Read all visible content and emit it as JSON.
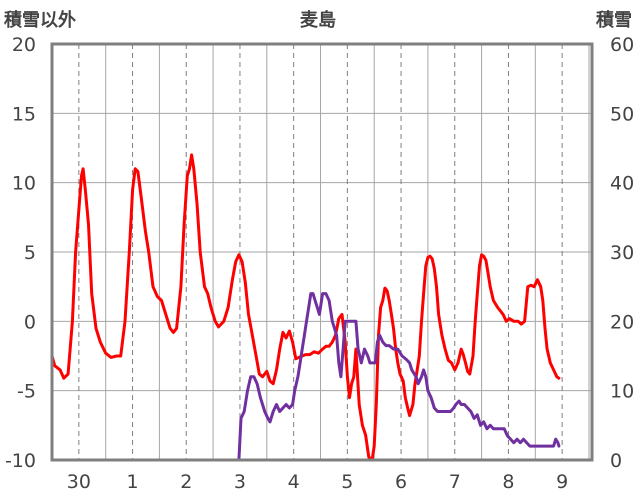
{
  "chart_data": {
    "type": "line",
    "title": "麦島",
    "ylabel_left": "積雪以外",
    "ylabel_right": "積雪",
    "ylim_left": [
      -10,
      20
    ],
    "ylim_right": [
      0,
      60
    ],
    "left_ticks": [
      "20",
      "15",
      "10",
      "5",
      "0",
      "-5",
      "-10"
    ],
    "right_ticks": [
      "60",
      "50",
      "40",
      "30",
      "20",
      "10",
      "0"
    ],
    "day_ticks": [
      "30",
      "1",
      "2",
      "3",
      "4",
      "5",
      "6",
      "7",
      "8",
      "9"
    ],
    "x_range": [
      29.5,
      9.5
    ],
    "grid": true,
    "series": [
      {
        "axis": "left",
        "color": "#ff0000",
        "points": [
          [
            0.0,
            -2.5
          ],
          [
            0.05,
            -3.2
          ],
          [
            0.15,
            -3.5
          ],
          [
            0.22,
            -4.1
          ],
          [
            0.3,
            -3.8
          ],
          [
            0.38,
            0.0
          ],
          [
            0.44,
            5.0
          ],
          [
            0.5,
            8.0
          ],
          [
            0.55,
            10.5
          ],
          [
            0.58,
            11.0
          ],
          [
            0.62,
            9.5
          ],
          [
            0.68,
            7.0
          ],
          [
            0.74,
            2.0
          ],
          [
            0.82,
            -0.5
          ],
          [
            0.9,
            -1.5
          ],
          [
            1.0,
            -2.3
          ],
          [
            1.1,
            -2.6
          ],
          [
            1.2,
            -2.5
          ],
          [
            1.28,
            -2.5
          ],
          [
            1.36,
            0.0
          ],
          [
            1.44,
            5.0
          ],
          [
            1.5,
            9.5
          ],
          [
            1.55,
            11.0
          ],
          [
            1.6,
            10.8
          ],
          [
            1.66,
            9.0
          ],
          [
            1.74,
            6.5
          ],
          [
            1.8,
            5.0
          ],
          [
            1.88,
            2.5
          ],
          [
            1.96,
            1.8
          ],
          [
            2.04,
            1.5
          ],
          [
            2.12,
            0.5
          ],
          [
            2.2,
            -0.5
          ],
          [
            2.26,
            -0.8
          ],
          [
            2.32,
            -0.5
          ],
          [
            2.4,
            2.5
          ],
          [
            2.46,
            7.0
          ],
          [
            2.52,
            10.5
          ],
          [
            2.56,
            11.0
          ],
          [
            2.6,
            12.0
          ],
          [
            2.64,
            11.0
          ],
          [
            2.7,
            8.5
          ],
          [
            2.76,
            5.0
          ],
          [
            2.84,
            2.5
          ],
          [
            2.9,
            2.0
          ],
          [
            2.96,
            1.0
          ],
          [
            3.04,
            0.0
          ],
          [
            3.1,
            -0.4
          ],
          [
            3.2,
            0.0
          ],
          [
            3.28,
            1.0
          ],
          [
            3.36,
            3.0
          ],
          [
            3.42,
            4.3
          ],
          [
            3.48,
            4.8
          ],
          [
            3.54,
            4.3
          ],
          [
            3.6,
            2.8
          ],
          [
            3.66,
            0.5
          ],
          [
            3.72,
            -0.8
          ],
          [
            3.8,
            -2.5
          ],
          [
            3.86,
            -3.8
          ],
          [
            3.92,
            -4.0
          ],
          [
            4.0,
            -3.6
          ],
          [
            4.06,
            -4.3
          ],
          [
            4.12,
            -4.5
          ],
          [
            4.18,
            -3.5
          ],
          [
            4.24,
            -2.0
          ],
          [
            4.3,
            -0.8
          ],
          [
            4.36,
            -1.2
          ],
          [
            4.42,
            -0.7
          ],
          [
            4.48,
            -1.5
          ],
          [
            4.54,
            -2.7
          ],
          [
            4.6,
            -2.6
          ],
          [
            4.66,
            -2.5
          ],
          [
            4.72,
            -2.4
          ],
          [
            4.8,
            -2.4
          ],
          [
            4.88,
            -2.2
          ],
          [
            4.96,
            -2.3
          ],
          [
            5.04,
            -2.0
          ],
          [
            5.1,
            -1.8
          ],
          [
            5.16,
            -1.8
          ],
          [
            5.22,
            -1.5
          ],
          [
            5.28,
            -1.0
          ],
          [
            5.34,
            0.2
          ],
          [
            5.4,
            0.5
          ],
          [
            5.46,
            -1.5
          ],
          [
            5.5,
            -4.0
          ],
          [
            5.54,
            -5.5
          ],
          [
            5.58,
            -4.5
          ],
          [
            5.62,
            -4.0
          ],
          [
            5.66,
            -2.0
          ],
          [
            5.72,
            -6.0
          ],
          [
            5.78,
            -7.5
          ],
          [
            5.84,
            -8.2
          ],
          [
            5.9,
            -9.8
          ],
          [
            5.96,
            -10.0
          ],
          [
            6.0,
            -9.0
          ],
          [
            6.04,
            -6.0
          ],
          [
            6.08,
            -1.0
          ],
          [
            6.12,
            1.0
          ],
          [
            6.16,
            1.5
          ],
          [
            6.2,
            2.4
          ],
          [
            6.24,
            2.2
          ],
          [
            6.28,
            1.5
          ],
          [
            6.32,
            0.5
          ],
          [
            6.36,
            -0.5
          ],
          [
            6.4,
            -2.0
          ],
          [
            6.44,
            -3.0
          ],
          [
            6.48,
            -3.8
          ],
          [
            6.54,
            -4.3
          ],
          [
            6.58,
            -5.5
          ],
          [
            6.62,
            -6.2
          ],
          [
            6.66,
            -6.8
          ],
          [
            6.72,
            -6.0
          ],
          [
            6.76,
            -4.5
          ],
          [
            6.8,
            -3.5
          ],
          [
            6.84,
            -2.5
          ],
          [
            6.88,
            0.0
          ],
          [
            6.92,
            2.0
          ],
          [
            6.96,
            4.0
          ],
          [
            7.0,
            4.6
          ],
          [
            7.04,
            4.7
          ],
          [
            7.08,
            4.5
          ],
          [
            7.12,
            3.8
          ],
          [
            7.16,
            2.5
          ],
          [
            7.2,
            0.5
          ],
          [
            7.26,
            -1.0
          ],
          [
            7.32,
            -2.0
          ],
          [
            7.38,
            -2.8
          ],
          [
            7.44,
            -3.0
          ],
          [
            7.5,
            -3.5
          ],
          [
            7.56,
            -3.0
          ],
          [
            7.62,
            -2.0
          ],
          [
            7.66,
            -2.4
          ],
          [
            7.7,
            -3.0
          ],
          [
            7.74,
            -3.6
          ],
          [
            7.78,
            -3.8
          ],
          [
            7.84,
            -2.5
          ],
          [
            7.88,
            0.0
          ],
          [
            7.92,
            2.0
          ],
          [
            7.96,
            4.0
          ],
          [
            8.0,
            4.8
          ],
          [
            8.04,
            4.7
          ],
          [
            8.08,
            4.4
          ],
          [
            8.12,
            3.5
          ],
          [
            8.16,
            2.5
          ],
          [
            8.22,
            1.5
          ],
          [
            8.3,
            1.0
          ],
          [
            8.4,
            0.5
          ],
          [
            8.46,
            0.0
          ],
          [
            8.52,
            0.2
          ],
          [
            8.6,
            0.0
          ],
          [
            8.68,
            0.0
          ],
          [
            8.74,
            -0.2
          ],
          [
            8.8,
            0.0
          ],
          [
            8.86,
            2.5
          ],
          [
            8.92,
            2.6
          ],
          [
            8.98,
            2.5
          ],
          [
            9.04,
            3.0
          ],
          [
            9.1,
            2.5
          ],
          [
            9.14,
            1.5
          ],
          [
            9.18,
            -0.5
          ],
          [
            9.22,
            -2.0
          ],
          [
            9.28,
            -3.0
          ],
          [
            9.34,
            -3.5
          ],
          [
            9.4,
            -4.0
          ],
          [
            9.44,
            -4.1
          ]
        ]
      },
      {
        "axis": "right",
        "color": "#7030a0",
        "points": [
          [
            0.0,
            0.0
          ],
          [
            3.48,
            0.0
          ],
          [
            3.52,
            6.0
          ],
          [
            3.58,
            7.0
          ],
          [
            3.64,
            10.0
          ],
          [
            3.7,
            12.0
          ],
          [
            3.76,
            12.0
          ],
          [
            3.82,
            11.0
          ],
          [
            3.88,
            9.0
          ],
          [
            3.96,
            7.0
          ],
          [
            4.02,
            6.0
          ],
          [
            4.06,
            5.5
          ],
          [
            4.12,
            7.0
          ],
          [
            4.18,
            8.0
          ],
          [
            4.24,
            7.0
          ],
          [
            4.3,
            7.5
          ],
          [
            4.36,
            8.0
          ],
          [
            4.42,
            7.5
          ],
          [
            4.48,
            8.0
          ],
          [
            4.52,
            10.0
          ],
          [
            4.58,
            12.0
          ],
          [
            4.62,
            14.0
          ],
          [
            4.66,
            16.0
          ],
          [
            4.7,
            18.0
          ],
          [
            4.74,
            20.0
          ],
          [
            4.78,
            22.0
          ],
          [
            4.82,
            24.0
          ],
          [
            4.86,
            24.0
          ],
          [
            4.9,
            23.0
          ],
          [
            4.94,
            22.0
          ],
          [
            4.98,
            21.0
          ],
          [
            5.04,
            24.0
          ],
          [
            5.1,
            24.0
          ],
          [
            5.16,
            23.0
          ],
          [
            5.22,
            20.0
          ],
          [
            5.26,
            19.0
          ],
          [
            5.3,
            18.0
          ],
          [
            5.34,
            14.0
          ],
          [
            5.38,
            12.0
          ],
          [
            5.42,
            16.0
          ],
          [
            5.46,
            20.0
          ],
          [
            5.5,
            20.0
          ],
          [
            5.54,
            20.0
          ],
          [
            5.58,
            20.0
          ],
          [
            5.62,
            20.0
          ],
          [
            5.66,
            20.0
          ],
          [
            5.7,
            16.0
          ],
          [
            5.76,
            14.0
          ],
          [
            5.82,
            16.0
          ],
          [
            5.88,
            15.0
          ],
          [
            5.92,
            14.0
          ],
          [
            5.98,
            14.0
          ],
          [
            6.02,
            14.0
          ],
          [
            6.06,
            17.0
          ],
          [
            6.1,
            18.0
          ],
          [
            6.16,
            17.0
          ],
          [
            6.22,
            16.5
          ],
          [
            6.28,
            16.5
          ],
          [
            6.36,
            16.0
          ],
          [
            6.44,
            16.0
          ],
          [
            6.52,
            15.0
          ],
          [
            6.6,
            14.5
          ],
          [
            6.66,
            14.0
          ],
          [
            6.7,
            13.0
          ],
          [
            6.74,
            12.5
          ],
          [
            6.78,
            12.0
          ],
          [
            6.82,
            11.0
          ],
          [
            6.88,
            12.0
          ],
          [
            6.92,
            13.0
          ],
          [
            6.96,
            12.0
          ],
          [
            7.0,
            10.0
          ],
          [
            7.06,
            9.0
          ],
          [
            7.12,
            7.5
          ],
          [
            7.18,
            7.0
          ],
          [
            7.26,
            7.0
          ],
          [
            7.34,
            7.0
          ],
          [
            7.42,
            7.0
          ],
          [
            7.48,
            7.5
          ],
          [
            7.52,
            8.0
          ],
          [
            7.58,
            8.5
          ],
          [
            7.62,
            8.0
          ],
          [
            7.68,
            8.0
          ],
          [
            7.74,
            7.5
          ],
          [
            7.8,
            7.0
          ],
          [
            7.86,
            6.0
          ],
          [
            7.92,
            6.5
          ],
          [
            7.98,
            5.0
          ],
          [
            8.04,
            5.5
          ],
          [
            8.1,
            4.5
          ],
          [
            8.16,
            5.0
          ],
          [
            8.22,
            4.5
          ],
          [
            8.28,
            4.5
          ],
          [
            8.36,
            4.5
          ],
          [
            8.42,
            4.5
          ],
          [
            8.48,
            3.5
          ],
          [
            8.54,
            3.0
          ],
          [
            8.6,
            2.5
          ],
          [
            8.66,
            3.0
          ],
          [
            8.72,
            2.5
          ],
          [
            8.78,
            3.0
          ],
          [
            8.84,
            2.5
          ],
          [
            8.9,
            2.0
          ],
          [
            8.96,
            2.0
          ],
          [
            9.04,
            2.0
          ],
          [
            9.12,
            2.0
          ],
          [
            9.2,
            2.0
          ],
          [
            9.28,
            2.0
          ],
          [
            9.34,
            2.0
          ],
          [
            9.38,
            3.0
          ],
          [
            9.42,
            2.5
          ],
          [
            9.44,
            2.0
          ]
        ]
      }
    ]
  }
}
